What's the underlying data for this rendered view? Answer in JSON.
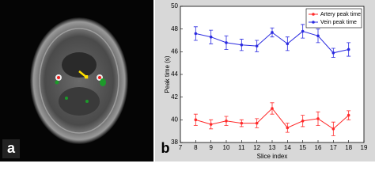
{
  "panel_labels": [
    "a",
    "b"
  ],
  "chart_data": {
    "type": "line",
    "xlabel": "Slice index",
    "ylabel": "Peak time (s)",
    "x": [
      8,
      9,
      10,
      11,
      12,
      13,
      14,
      15,
      16,
      17,
      18
    ],
    "xlim": [
      7,
      19
    ],
    "xticks": [
      7,
      8,
      9,
      10,
      11,
      12,
      13,
      14,
      15,
      16,
      17,
      18,
      19
    ],
    "ylim": [
      38,
      50
    ],
    "yticks": [
      38,
      40,
      42,
      44,
      46,
      48,
      50
    ],
    "legend": "upper right",
    "series": [
      {
        "name": "Artery peak time",
        "color": "#ff2a2a",
        "values": [
          40.0,
          39.6,
          39.9,
          39.7,
          39.7,
          41.0,
          39.3,
          39.9,
          40.1,
          39.2,
          40.4
        ],
        "errors": [
          0.5,
          0.4,
          0.4,
          0.3,
          0.4,
          0.5,
          0.4,
          0.5,
          0.6,
          0.6,
          0.4
        ]
      },
      {
        "name": "Vein peak time",
        "color": "#2a2ae0",
        "values": [
          47.6,
          47.3,
          46.8,
          46.6,
          46.5,
          47.7,
          46.7,
          47.8,
          47.4,
          45.9,
          46.2
        ],
        "errors": [
          0.6,
          0.6,
          0.6,
          0.5,
          0.5,
          0.4,
          0.6,
          0.6,
          0.6,
          0.4,
          0.6
        ]
      }
    ]
  }
}
